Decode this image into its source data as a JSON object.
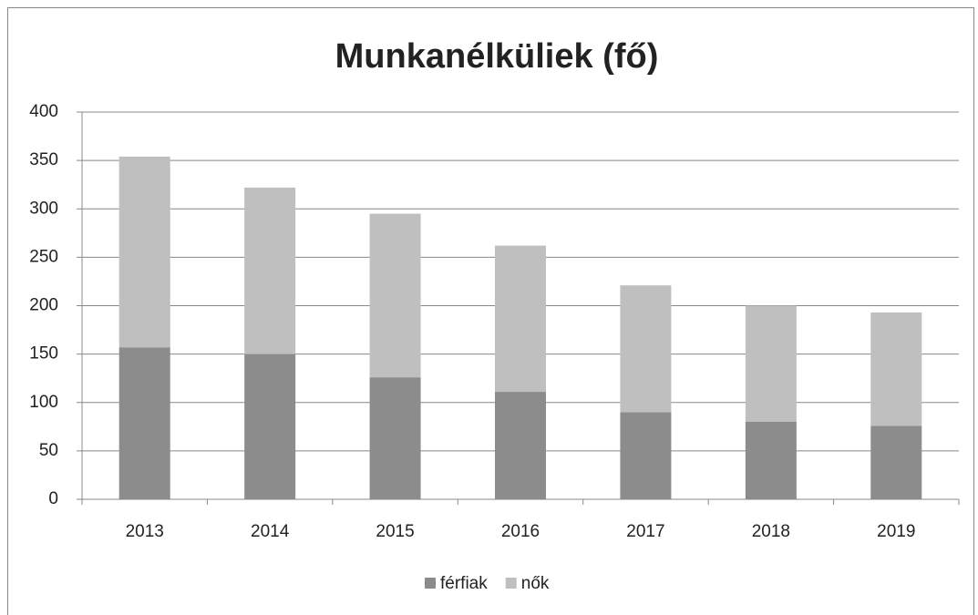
{
  "chart_data": {
    "type": "stacked_bar",
    "title": "Munkanélküliek (fő)",
    "categories": [
      "2013",
      "2014",
      "2015",
      "2016",
      "2017",
      "2018",
      "2019"
    ],
    "series": [
      {
        "name": "férfiak",
        "color": "#8c8c8c",
        "values": [
          157,
          150,
          126,
          111,
          90,
          80,
          76
        ]
      },
      {
        "name": "nők",
        "color": "#bfbfbf",
        "values": [
          197,
          172,
          169,
          151,
          131,
          120,
          117
        ]
      }
    ],
    "ylim": [
      0,
      400
    ],
    "yticks": [
      0,
      50,
      100,
      150,
      200,
      250,
      300,
      350,
      400
    ],
    "grid": true,
    "legend": "bottom"
  }
}
